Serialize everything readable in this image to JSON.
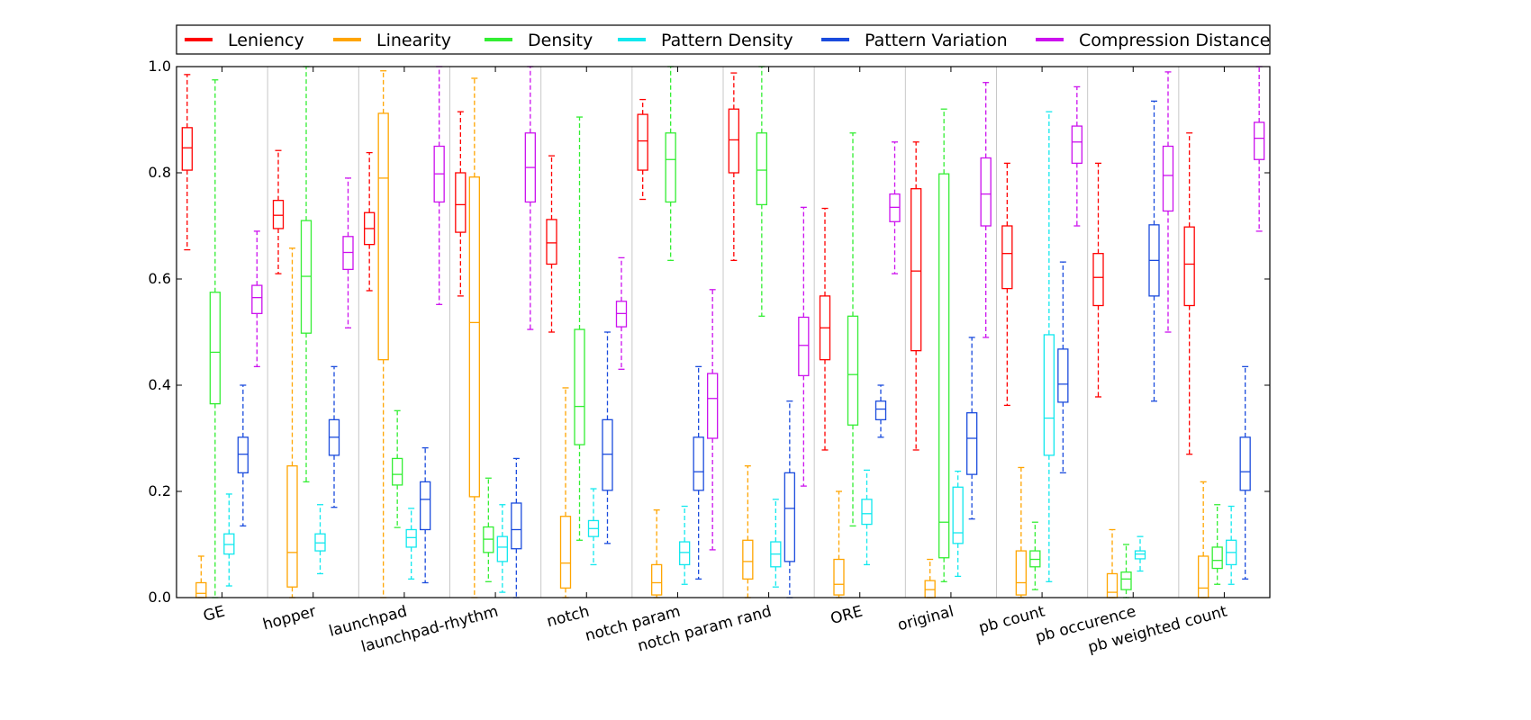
{
  "chart_data": {
    "type": "boxplot",
    "title": "",
    "xlabel": "",
    "ylabel": "",
    "ylim": [
      0.0,
      1.0
    ],
    "yticks": [
      "0.0",
      "0.2",
      "0.4",
      "0.6",
      "0.8",
      "1.0"
    ],
    "grid": false,
    "legend_position": "top",
    "categories": [
      "GE",
      "hopper",
      "launchpad",
      "launchpad-rhythm",
      "notch",
      "notch param",
      "notch param rand",
      "ORE",
      "original",
      "pb count",
      "pb occurence",
      "pb weighted count"
    ],
    "series": [
      {
        "name": "Leniency",
        "color": "#ff0000",
        "boxes": [
          {
            "wlo": 0.655,
            "q1": 0.805,
            "med": 0.847,
            "q3": 0.885,
            "whi": 0.985
          },
          {
            "wlo": 0.61,
            "q1": 0.695,
            "med": 0.72,
            "q3": 0.748,
            "whi": 0.842
          },
          {
            "wlo": 0.578,
            "q1": 0.665,
            "med": 0.695,
            "q3": 0.725,
            "whi": 0.838
          },
          {
            "wlo": 0.568,
            "q1": 0.688,
            "med": 0.74,
            "q3": 0.8,
            "whi": 0.915
          },
          {
            "wlo": 0.5,
            "q1": 0.628,
            "med": 0.668,
            "q3": 0.712,
            "whi": 0.832
          },
          {
            "wlo": 0.75,
            "q1": 0.805,
            "med": 0.86,
            "q3": 0.91,
            "whi": 0.938
          },
          {
            "wlo": 0.635,
            "q1": 0.8,
            "med": 0.862,
            "q3": 0.92,
            "whi": 0.988
          },
          {
            "wlo": 0.278,
            "q1": 0.448,
            "med": 0.508,
            "q3": 0.568,
            "whi": 0.733
          },
          {
            "wlo": 0.278,
            "q1": 0.465,
            "med": 0.615,
            "q3": 0.77,
            "whi": 0.858
          },
          {
            "wlo": 0.362,
            "q1": 0.582,
            "med": 0.648,
            "q3": 0.7,
            "whi": 0.818
          },
          {
            "wlo": 0.378,
            "q1": 0.55,
            "med": 0.603,
            "q3": 0.648,
            "whi": 0.818
          },
          {
            "wlo": 0.27,
            "q1": 0.55,
            "med": 0.628,
            "q3": 0.698,
            "whi": 0.875
          }
        ]
      },
      {
        "name": "Linearity",
        "color": "#ffa500",
        "boxes": [
          {
            "wlo": 0.0,
            "q1": 0.0,
            "med": 0.008,
            "q3": 0.028,
            "whi": 0.078
          },
          {
            "wlo": 0.0,
            "q1": 0.02,
            "med": 0.085,
            "q3": 0.248,
            "whi": 0.658
          },
          {
            "wlo": 0.0,
            "q1": 0.448,
            "med": 0.79,
            "q3": 0.912,
            "whi": 0.992
          },
          {
            "wlo": 0.0,
            "q1": 0.19,
            "med": 0.518,
            "q3": 0.792,
            "whi": 0.978
          },
          {
            "wlo": 0.0,
            "q1": 0.018,
            "med": 0.065,
            "q3": 0.153,
            "whi": 0.395
          },
          {
            "wlo": 0.0,
            "q1": 0.005,
            "med": 0.028,
            "q3": 0.062,
            "whi": 0.165
          },
          {
            "wlo": 0.0,
            "q1": 0.035,
            "med": 0.068,
            "q3": 0.108,
            "whi": 0.248
          },
          {
            "wlo": 0.0,
            "q1": 0.005,
            "med": 0.025,
            "q3": 0.072,
            "whi": 0.2
          },
          {
            "wlo": 0.0,
            "q1": 0.0,
            "med": 0.015,
            "q3": 0.032,
            "whi": 0.072
          },
          {
            "wlo": 0.0,
            "q1": 0.005,
            "med": 0.028,
            "q3": 0.088,
            "whi": 0.245
          },
          {
            "wlo": 0.0,
            "q1": 0.0,
            "med": 0.01,
            "q3": 0.045,
            "whi": 0.128
          },
          {
            "wlo": 0.0,
            "q1": 0.0,
            "med": 0.018,
            "q3": 0.078,
            "whi": 0.218
          }
        ]
      },
      {
        "name": "Density",
        "color": "#33ee33",
        "boxes": [
          {
            "wlo": 0.0,
            "q1": 0.365,
            "med": 0.462,
            "q3": 0.575,
            "whi": 0.975
          },
          {
            "wlo": 0.218,
            "q1": 0.498,
            "med": 0.605,
            "q3": 0.71,
            "whi": 1.0
          },
          {
            "wlo": 0.132,
            "q1": 0.212,
            "med": 0.232,
            "q3": 0.262,
            "whi": 0.352
          },
          {
            "wlo": 0.03,
            "q1": 0.085,
            "med": 0.11,
            "q3": 0.133,
            "whi": 0.225
          },
          {
            "wlo": 0.108,
            "q1": 0.288,
            "med": 0.36,
            "q3": 0.505,
            "whi": 0.905
          },
          {
            "wlo": 0.635,
            "q1": 0.745,
            "med": 0.825,
            "q3": 0.875,
            "whi": 1.0
          },
          {
            "wlo": 0.53,
            "q1": 0.74,
            "med": 0.805,
            "q3": 0.875,
            "whi": 1.0
          },
          {
            "wlo": 0.135,
            "q1": 0.325,
            "med": 0.42,
            "q3": 0.53,
            "whi": 0.875
          },
          {
            "wlo": 0.03,
            "q1": 0.075,
            "med": 0.142,
            "q3": 0.798,
            "whi": 0.92
          },
          {
            "wlo": 0.015,
            "q1": 0.058,
            "med": 0.072,
            "q3": 0.088,
            "whi": 0.142
          },
          {
            "wlo": 0.0,
            "q1": 0.015,
            "med": 0.035,
            "q3": 0.048,
            "whi": 0.1
          },
          {
            "wlo": 0.025,
            "q1": 0.055,
            "med": 0.07,
            "q3": 0.095,
            "whi": 0.175
          }
        ]
      },
      {
        "name": "Pattern Density",
        "color": "#11e8ee",
        "boxes": [
          {
            "wlo": 0.022,
            "q1": 0.082,
            "med": 0.1,
            "q3": 0.12,
            "whi": 0.195
          },
          {
            "wlo": 0.045,
            "q1": 0.088,
            "med": 0.103,
            "q3": 0.12,
            "whi": 0.175
          },
          {
            "wlo": 0.035,
            "q1": 0.095,
            "med": 0.113,
            "q3": 0.128,
            "whi": 0.168
          },
          {
            "wlo": 0.01,
            "q1": 0.068,
            "med": 0.095,
            "q3": 0.115,
            "whi": 0.175
          },
          {
            "wlo": 0.062,
            "q1": 0.115,
            "med": 0.13,
            "q3": 0.145,
            "whi": 0.205
          },
          {
            "wlo": 0.025,
            "q1": 0.062,
            "med": 0.085,
            "q3": 0.105,
            "whi": 0.172
          },
          {
            "wlo": 0.02,
            "q1": 0.058,
            "med": 0.082,
            "q3": 0.105,
            "whi": 0.185
          },
          {
            "wlo": 0.062,
            "q1": 0.138,
            "med": 0.158,
            "q3": 0.185,
            "whi": 0.24
          },
          {
            "wlo": 0.04,
            "q1": 0.102,
            "med": 0.122,
            "q3": 0.208,
            "whi": 0.238
          },
          {
            "wlo": 0.03,
            "q1": 0.268,
            "med": 0.338,
            "q3": 0.495,
            "whi": 0.915
          },
          {
            "wlo": 0.05,
            "q1": 0.073,
            "med": 0.082,
            "q3": 0.088,
            "whi": 0.115
          },
          {
            "wlo": 0.025,
            "q1": 0.062,
            "med": 0.085,
            "q3": 0.108,
            "whi": 0.172
          }
        ]
      },
      {
        "name": "Pattern Variation",
        "color": "#1a4bdd",
        "boxes": [
          {
            "wlo": 0.135,
            "q1": 0.235,
            "med": 0.27,
            "q3": 0.302,
            "whi": 0.4
          },
          {
            "wlo": 0.17,
            "q1": 0.268,
            "med": 0.302,
            "q3": 0.335,
            "whi": 0.435
          },
          {
            "wlo": 0.028,
            "q1": 0.128,
            "med": 0.185,
            "q3": 0.218,
            "whi": 0.282
          },
          {
            "wlo": 0.0,
            "q1": 0.092,
            "med": 0.128,
            "q3": 0.178,
            "whi": 0.262
          },
          {
            "wlo": 0.102,
            "q1": 0.202,
            "med": 0.27,
            "q3": 0.335,
            "whi": 0.5
          },
          {
            "wlo": 0.035,
            "q1": 0.202,
            "med": 0.237,
            "q3": 0.302,
            "whi": 0.435
          },
          {
            "wlo": 0.0,
            "q1": 0.068,
            "med": 0.168,
            "q3": 0.235,
            "whi": 0.37
          },
          {
            "wlo": 0.302,
            "q1": 0.335,
            "med": 0.355,
            "q3": 0.37,
            "whi": 0.4
          },
          {
            "wlo": 0.148,
            "q1": 0.232,
            "med": 0.3,
            "q3": 0.348,
            "whi": 0.49
          },
          {
            "wlo": 0.235,
            "q1": 0.368,
            "med": 0.402,
            "q3": 0.468,
            "whi": 0.632
          },
          {
            "wlo": 0.37,
            "q1": 0.568,
            "med": 0.635,
            "q3": 0.702,
            "whi": 0.935
          },
          {
            "wlo": 0.035,
            "q1": 0.202,
            "med": 0.237,
            "q3": 0.302,
            "whi": 0.435
          }
        ]
      },
      {
        "name": "Compression Distance",
        "color": "#cc11ee",
        "boxes": [
          {
            "wlo": 0.435,
            "q1": 0.535,
            "med": 0.565,
            "q3": 0.588,
            "whi": 0.69
          },
          {
            "wlo": 0.508,
            "q1": 0.618,
            "med": 0.65,
            "q3": 0.68,
            "whi": 0.79
          },
          {
            "wlo": 0.552,
            "q1": 0.745,
            "med": 0.798,
            "q3": 0.85,
            "whi": 1.0
          },
          {
            "wlo": 0.505,
            "q1": 0.745,
            "med": 0.81,
            "q3": 0.875,
            "whi": 1.0
          },
          {
            "wlo": 0.43,
            "q1": 0.51,
            "med": 0.535,
            "q3": 0.558,
            "whi": 0.64
          },
          {
            "wlo": 0.09,
            "q1": 0.3,
            "med": 0.375,
            "q3": 0.422,
            "whi": 0.58
          },
          {
            "wlo": 0.21,
            "q1": 0.418,
            "med": 0.475,
            "q3": 0.528,
            "whi": 0.735
          },
          {
            "wlo": 0.61,
            "q1": 0.708,
            "med": 0.735,
            "q3": 0.76,
            "whi": 0.858
          },
          {
            "wlo": 0.49,
            "q1": 0.7,
            "med": 0.76,
            "q3": 0.828,
            "whi": 0.97
          },
          {
            "wlo": 0.7,
            "q1": 0.818,
            "med": 0.858,
            "q3": 0.888,
            "whi": 0.962
          },
          {
            "wlo": 0.5,
            "q1": 0.728,
            "med": 0.795,
            "q3": 0.85,
            "whi": 0.99
          },
          {
            "wlo": 0.69,
            "q1": 0.825,
            "med": 0.865,
            "q3": 0.895,
            "whi": 1.0
          }
        ]
      }
    ]
  }
}
